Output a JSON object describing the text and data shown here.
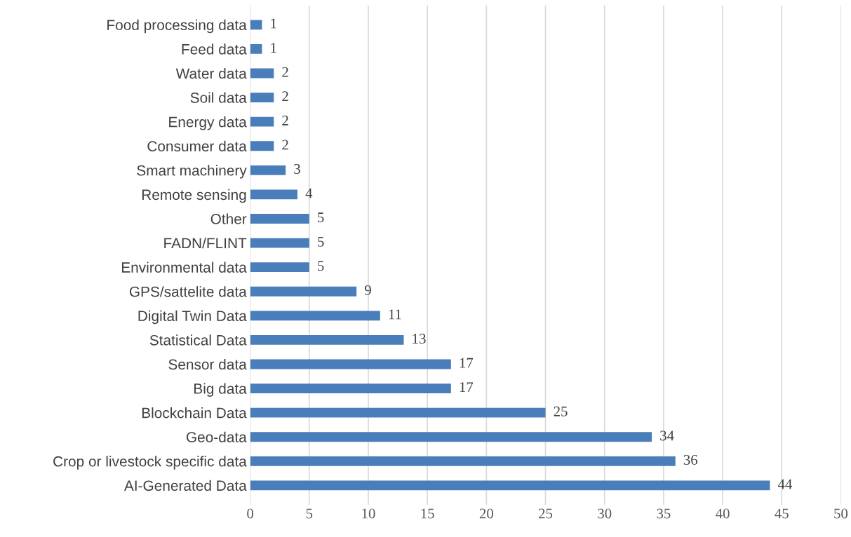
{
  "chart_data": {
    "type": "bar",
    "orientation": "horizontal",
    "categories": [
      "Food processing data",
      "Feed data",
      "Water data",
      "Soil data",
      "Energy data",
      "Consumer data",
      "Smart machinery",
      "Remote sensing",
      "Other",
      "FADN/FLINT",
      "Environmental data",
      "GPS/sattelite data",
      "Digital Twin Data",
      "Statistical Data",
      "Sensor data",
      "Big data",
      "Blockchain Data",
      "Geo-data",
      "Crop or livestock specific data",
      "AI-Generated Data"
    ],
    "values": [
      1,
      1,
      2,
      2,
      2,
      2,
      3,
      4,
      5,
      5,
      5,
      9,
      11,
      13,
      17,
      17,
      25,
      34,
      36,
      44
    ],
    "color": "#4a7ebb",
    "xlim": [
      0,
      50
    ],
    "xticks": [
      0,
      5,
      10,
      15,
      20,
      25,
      30,
      35,
      40,
      45,
      50
    ],
    "grid": "x",
    "data_labels": true,
    "legend": false
  }
}
